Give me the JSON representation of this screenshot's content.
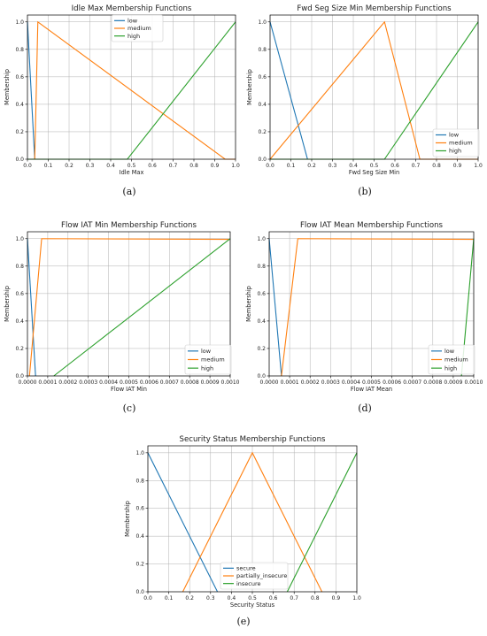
{
  "colors": {
    "low": "#1f77b4",
    "medium": "#ff7f0e",
    "high": "#2ca02c"
  },
  "chart_data": [
    {
      "id": "a",
      "panel_label": "(a)",
      "type": "line",
      "title": "Idle Max Membership Functions",
      "xlabel": "Idle Max",
      "ylabel": "Membership",
      "xlim": [
        0,
        1
      ],
      "ylim": [
        0,
        1.05
      ],
      "xticks": [
        0,
        0.1,
        0.2,
        0.3,
        0.4,
        0.5,
        0.6,
        0.7,
        0.8,
        0.9,
        1.0
      ],
      "xtick_labels": [
        "0.0",
        "0.1",
        "0.2",
        "0.3",
        "0.4",
        "0.5",
        "0.6",
        "0.7",
        "0.8",
        "0.9",
        "1.0"
      ],
      "yticks": [
        0,
        0.2,
        0.4,
        0.6,
        0.8,
        1.0
      ],
      "ytick_labels": [
        "0.0",
        "0.2",
        "0.4",
        "0.6",
        "0.8",
        "1.0"
      ],
      "grid": true,
      "legend": "top-center",
      "series": [
        {
          "name": "low",
          "color": "#1f77b4",
          "x": [
            0,
            0.035
          ],
          "y": [
            1,
            0
          ]
        },
        {
          "name": "medium",
          "color": "#ff7f0e",
          "x": [
            0.035,
            0.05,
            0.95,
            1.0
          ],
          "y": [
            0,
            1,
            0,
            0
          ]
        },
        {
          "name": "high",
          "color": "#2ca02c",
          "x": [
            0,
            0.48,
            1.0
          ],
          "y": [
            0,
            0,
            1
          ]
        }
      ]
    },
    {
      "id": "b",
      "panel_label": "(b)",
      "type": "line",
      "title": "Fwd Seg Size Min Membership Functions",
      "xlabel": "Fwd Seg Size Min",
      "ylabel": "Membership",
      "xlim": [
        0,
        1
      ],
      "ylim": [
        0,
        1.05
      ],
      "xticks": [
        0,
        0.1,
        0.2,
        0.3,
        0.4,
        0.5,
        0.6,
        0.7,
        0.8,
        0.9,
        1.0
      ],
      "xtick_labels": [
        "0.0",
        "0.1",
        "0.2",
        "0.3",
        "0.4",
        "0.5",
        "0.6",
        "0.7",
        "0.8",
        "0.9",
        "1.0"
      ],
      "yticks": [
        0,
        0.2,
        0.4,
        0.6,
        0.8,
        1.0
      ],
      "ytick_labels": [
        "0.0",
        "0.2",
        "0.4",
        "0.6",
        "0.8",
        "1.0"
      ],
      "grid": true,
      "legend": "bottom-right",
      "series": [
        {
          "name": "low",
          "color": "#1f77b4",
          "x": [
            0,
            0.18
          ],
          "y": [
            1,
            0
          ]
        },
        {
          "name": "medium",
          "color": "#ff7f0e",
          "x": [
            0,
            0.55,
            0.72,
            1.0
          ],
          "y": [
            0,
            1,
            0,
            0
          ]
        },
        {
          "name": "high",
          "color": "#2ca02c",
          "x": [
            0,
            0.55,
            1.0
          ],
          "y": [
            0,
            0,
            1
          ]
        }
      ]
    },
    {
      "id": "c",
      "panel_label": "(c)",
      "type": "line",
      "title": "Flow IAT Min Membership Functions",
      "xlabel": "Flow IAT Min",
      "ylabel": "Membership",
      "xlim": [
        0,
        0.001
      ],
      "ylim": [
        0,
        1.05
      ],
      "xticks": [
        0,
        0.0001,
        0.0002,
        0.0003,
        0.0004,
        0.0005,
        0.0006,
        0.0007,
        0.0008,
        0.0009,
        0.001
      ],
      "xtick_labels": [
        "0.0000",
        "0.0001",
        "0.0002",
        "0.0003",
        "0.0004",
        "0.0005",
        "0.0006",
        "0.0007",
        "0.0008",
        "0.0009",
        "0.0010"
      ],
      "yticks": [
        0,
        0.2,
        0.4,
        0.6,
        0.8,
        1.0
      ],
      "ytick_labels": [
        "0.0",
        "0.2",
        "0.4",
        "0.6",
        "0.8",
        "1.0"
      ],
      "grid": true,
      "legend": "bottom-right",
      "series": [
        {
          "name": "low",
          "color": "#1f77b4",
          "x": [
            0,
            4e-05
          ],
          "y": [
            1,
            0
          ]
        },
        {
          "name": "medium",
          "color": "#ff7f0e",
          "x": [
            1e-05,
            7e-05,
            0.001
          ],
          "y": [
            0,
            1,
            0.995
          ]
        },
        {
          "name": "high",
          "color": "#2ca02c",
          "x": [
            0.00013,
            0.001
          ],
          "y": [
            0,
            1
          ]
        }
      ]
    },
    {
      "id": "d",
      "panel_label": "(d)",
      "type": "line",
      "title": "Flow IAT Mean Membership Functions",
      "xlabel": "Flow IAT Mean",
      "ylabel": "Membership",
      "xlim": [
        0,
        0.001
      ],
      "ylim": [
        0,
        1.05
      ],
      "xticks": [
        0,
        0.0001,
        0.0002,
        0.0003,
        0.0004,
        0.0005,
        0.0006,
        0.0007,
        0.0008,
        0.0009,
        0.001
      ],
      "xtick_labels": [
        "0.0000",
        "0.0001",
        "0.0002",
        "0.0003",
        "0.0004",
        "0.0005",
        "0.0006",
        "0.0007",
        "0.0008",
        "0.0009",
        "0.0010"
      ],
      "yticks": [
        0,
        0.2,
        0.4,
        0.6,
        0.8,
        1.0
      ],
      "ytick_labels": [
        "0.0",
        "0.2",
        "0.4",
        "0.6",
        "0.8",
        "1.0"
      ],
      "grid": true,
      "legend": "bottom-right",
      "series": [
        {
          "name": "low",
          "color": "#1f77b4",
          "x": [
            0,
            6e-05
          ],
          "y": [
            1,
            0
          ]
        },
        {
          "name": "medium",
          "color": "#ff7f0e",
          "x": [
            6e-05,
            0.00014,
            0.001
          ],
          "y": [
            0,
            1,
            0.995
          ]
        },
        {
          "name": "high",
          "color": "#2ca02c",
          "x": [
            0.00094,
            0.001
          ],
          "y": [
            0,
            1
          ]
        }
      ]
    },
    {
      "id": "e",
      "panel_label": "(e)",
      "type": "line",
      "title": "Security Status Membership Functions",
      "xlabel": "Security Status",
      "ylabel": "Membership",
      "xlim": [
        0,
        1
      ],
      "ylim": [
        0,
        1.05
      ],
      "xticks": [
        0,
        0.1,
        0.2,
        0.3,
        0.4,
        0.5,
        0.6,
        0.7,
        0.8,
        0.9,
        1.0
      ],
      "xtick_labels": [
        "0.0",
        "0.1",
        "0.2",
        "0.3",
        "0.4",
        "0.5",
        "0.6",
        "0.7",
        "0.8",
        "0.9",
        "1.0"
      ],
      "yticks": [
        0,
        0.2,
        0.4,
        0.6,
        0.8,
        1.0
      ],
      "ytick_labels": [
        "0.0",
        "0.2",
        "0.4",
        "0.6",
        "0.8",
        "1.0"
      ],
      "grid": true,
      "legend": "bottom-center",
      "series": [
        {
          "name": "secure",
          "color": "#1f77b4",
          "x": [
            0,
            0.333
          ],
          "y": [
            1,
            0
          ]
        },
        {
          "name": "partially_insecure",
          "color": "#ff7f0e",
          "x": [
            0.167,
            0.5,
            0.833
          ],
          "y": [
            0,
            1,
            0
          ]
        },
        {
          "name": "insecure",
          "color": "#2ca02c",
          "x": [
            0.667,
            1.0
          ],
          "y": [
            0,
            1
          ]
        }
      ]
    }
  ]
}
